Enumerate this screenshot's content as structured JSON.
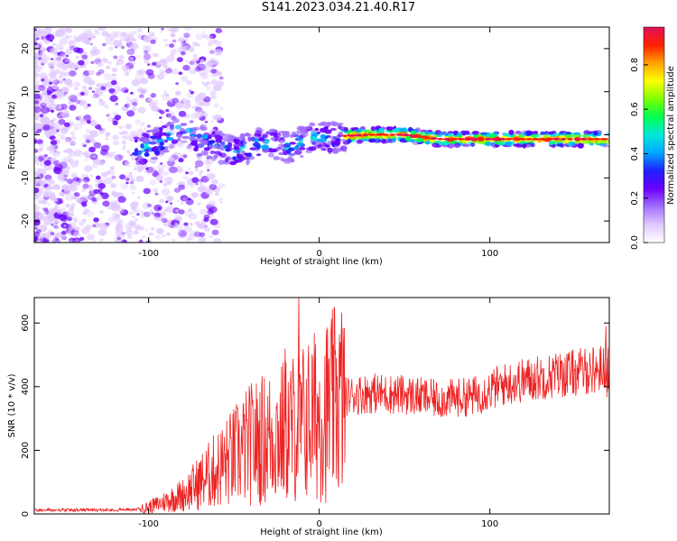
{
  "page_title": "S141.2023.034.21.40.R17",
  "colors": {
    "snr_line": "#ee2222",
    "colormap": [
      "#ffffff",
      "#e0c8ff",
      "#a070ff",
      "#6a00ff",
      "#1e20ff",
      "#00a8ff",
      "#00e8d8",
      "#00ff50",
      "#80ff00",
      "#ffff00",
      "#ffa000",
      "#ff2000",
      "#e0105a"
    ]
  },
  "chart_data": [
    {
      "type": "heatmap",
      "title": "S141.2023.034.21.40.R17",
      "xlabel": "Height of straight line (km)",
      "ylabel": "Frequency (Hz)",
      "xlim": [
        -167,
        170
      ],
      "ylim": [
        -25,
        25
      ],
      "x_ticks": [
        -100,
        0,
        100
      ],
      "y_ticks": [
        -20,
        -10,
        0,
        10,
        20
      ],
      "colorbar": {
        "label": "Normalized spectral amplitude",
        "range": [
          0,
          0.97
        ],
        "ticks": [
          0.0,
          0.2,
          0.4,
          0.6,
          0.8
        ]
      },
      "ridge": [
        {
          "x": -105,
          "y": -3
        },
        {
          "x": -95,
          "y": -2
        },
        {
          "x": -88,
          "y": 0
        },
        {
          "x": -80,
          "y": 2
        },
        {
          "x": -72,
          "y": -1
        },
        {
          "x": -65,
          "y": -2
        },
        {
          "x": -58,
          "y": -3
        },
        {
          "x": -50,
          "y": -4
        },
        {
          "x": -42,
          "y": -3
        },
        {
          "x": -35,
          "y": -2
        },
        {
          "x": -25,
          "y": -2
        },
        {
          "x": -18,
          "y": -3
        },
        {
          "x": -10,
          "y": -1.5
        },
        {
          "x": -2,
          "y": -0.5
        },
        {
          "x": 5,
          "y": -1
        },
        {
          "x": 12,
          "y": -0.3
        },
        {
          "x": 30,
          "y": 0
        },
        {
          "x": 50,
          "y": 0
        },
        {
          "x": 70,
          "y": -1
        },
        {
          "x": 100,
          "y": -1
        },
        {
          "x": 130,
          "y": -1
        },
        {
          "x": 150,
          "y": -1
        },
        {
          "x": 170,
          "y": -1
        }
      ]
    },
    {
      "type": "line",
      "xlabel": "Height of straight line (km)",
      "ylabel": "SNR (10 * v/v)",
      "xlim": [
        -167,
        170
      ],
      "ylim": [
        0,
        680
      ],
      "x_ticks": [
        -100,
        0,
        100
      ],
      "y_ticks": [
        0,
        200,
        400,
        600
      ],
      "envelope": [
        {
          "x": -167,
          "snr": 12
        },
        {
          "x": -130,
          "snr": 12
        },
        {
          "x": -105,
          "snr": 15
        },
        {
          "x": -95,
          "snr": 30
        },
        {
          "x": -80,
          "snr": 60
        },
        {
          "x": -70,
          "snr": 100
        },
        {
          "x": -60,
          "snr": 140
        },
        {
          "x": -50,
          "snr": 180
        },
        {
          "x": -40,
          "snr": 220
        },
        {
          "x": -30,
          "snr": 240
        },
        {
          "x": -20,
          "snr": 260
        },
        {
          "x": -12,
          "snr": 280
        },
        {
          "x": -5,
          "snr": 300
        },
        {
          "x": 5,
          "snr": 330
        },
        {
          "x": 15,
          "snr": 370
        },
        {
          "x": 30,
          "snr": 380
        },
        {
          "x": 50,
          "snr": 375
        },
        {
          "x": 70,
          "snr": 360
        },
        {
          "x": 90,
          "snr": 370
        },
        {
          "x": 110,
          "snr": 410
        },
        {
          "x": 130,
          "snr": 430
        },
        {
          "x": 150,
          "snr": 445
        },
        {
          "x": 170,
          "snr": 460
        }
      ],
      "spikes": [
        {
          "x": -12,
          "snr": 680
        },
        {
          "x": -20,
          "snr": 520
        },
        {
          "x": 10,
          "snr": 490
        },
        {
          "x": 168,
          "snr": 590
        }
      ]
    }
  ]
}
